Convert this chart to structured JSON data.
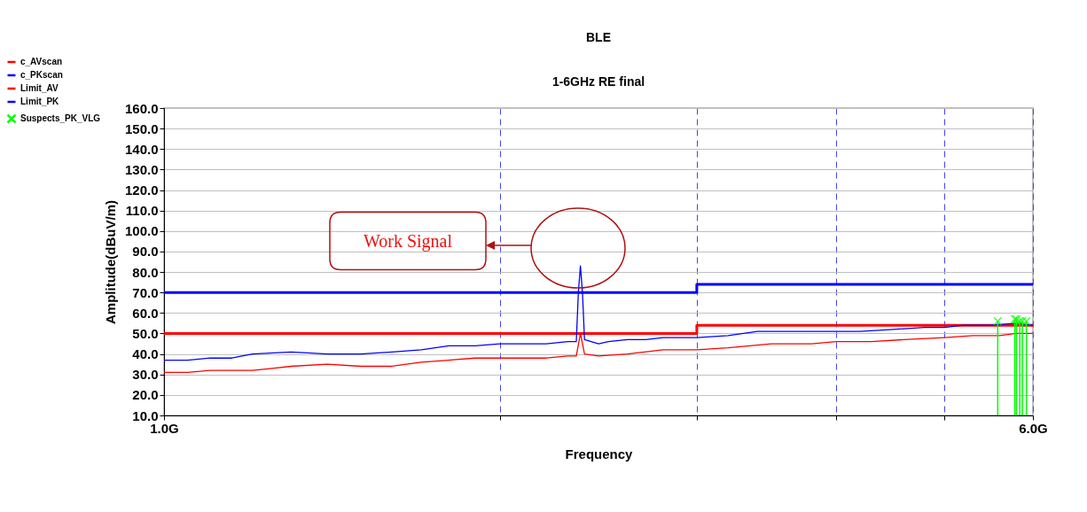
{
  "chart_data": {
    "type": "line",
    "title": "BLE",
    "subtitle": "1-6GHz RE final",
    "xlabel": "Frequency",
    "ylabel": "Amplitude(dBuV/m)",
    "log": "x",
    "xlim": [
      1,
      6
    ],
    "xticks": [
      {
        "value": 1,
        "label": "1.0G"
      },
      {
        "value": 2,
        "label": null
      },
      {
        "value": 3,
        "label": null
      },
      {
        "value": 4,
        "label": null
      },
      {
        "value": 5,
        "label": null
      },
      {
        "value": 6,
        "label": "6.0G"
      }
    ],
    "ylim": [
      10,
      160
    ],
    "yticks": [
      {
        "value": 10,
        "label": "10.0"
      },
      {
        "value": 20,
        "label": "20.0"
      },
      {
        "value": 30,
        "label": "30.0"
      },
      {
        "value": 40,
        "label": "40.0"
      },
      {
        "value": 50,
        "label": "50.0"
      },
      {
        "value": 60,
        "label": "60.0"
      },
      {
        "value": 70,
        "label": "70.0"
      },
      {
        "value": 80,
        "label": "80.0"
      },
      {
        "value": 90,
        "label": "90.0"
      },
      {
        "value": 100,
        "label": "100.0"
      },
      {
        "value": 110,
        "label": "110.0"
      },
      {
        "value": 120,
        "label": "120.0"
      },
      {
        "value": 130,
        "label": "130.0"
      },
      {
        "value": 140,
        "label": "140.0"
      },
      {
        "value": 150,
        "label": "150.0"
      },
      {
        "value": 160,
        "label": "160.0"
      }
    ],
    "grid": true,
    "legend": "top left",
    "annotations": [
      "Work Signal"
    ],
    "series": [
      {
        "name": "c_AVscan",
        "color": "#ff0000",
        "type": "line",
        "x": [
          1.0,
          1.05,
          1.1,
          1.15,
          1.2,
          1.25,
          1.3,
          1.4,
          1.5,
          1.6,
          1.7,
          1.8,
          1.9,
          2.0,
          2.1,
          2.2,
          2.3,
          2.34,
          2.36,
          2.38,
          2.45,
          2.6,
          2.8,
          3.0,
          3.2,
          3.5,
          3.8,
          4.0,
          4.3,
          4.6,
          5.0,
          5.3,
          5.6,
          5.8,
          6.0
        ],
        "values": [
          31,
          31,
          32,
          32,
          32,
          33,
          34,
          35,
          34,
          34,
          36,
          37,
          38,
          38,
          38,
          38,
          39,
          39,
          50,
          40,
          39,
          40,
          42,
          42,
          43,
          45,
          45,
          46,
          46,
          47,
          48,
          49,
          49,
          50,
          50
        ]
      },
      {
        "name": "c_PKscan",
        "color": "#0000ff",
        "type": "line",
        "x": [
          1.0,
          1.05,
          1.1,
          1.15,
          1.2,
          1.3,
          1.4,
          1.5,
          1.6,
          1.7,
          1.8,
          1.9,
          2.0,
          2.1,
          2.2,
          2.3,
          2.34,
          2.35,
          2.36,
          2.37,
          2.38,
          2.45,
          2.5,
          2.6,
          2.7,
          2.8,
          2.9,
          3.0,
          3.2,
          3.4,
          3.6,
          3.8,
          4.0,
          4.2,
          4.5,
          4.8,
          5.0,
          5.2,
          5.5,
          5.8,
          6.0
        ],
        "values": [
          37,
          37,
          38,
          38,
          40,
          41,
          40,
          40,
          41,
          42,
          44,
          44,
          45,
          45,
          45,
          46,
          46,
          70,
          83,
          70,
          47,
          45,
          46,
          47,
          47,
          48,
          48,
          48,
          49,
          51,
          51,
          51,
          51,
          51,
          52,
          53,
          53,
          54,
          54,
          55,
          54
        ]
      },
      {
        "name": "Limit_AV",
        "color": "#ff0000",
        "type": "step",
        "x": [
          1,
          3,
          6
        ],
        "values": [
          50,
          54,
          54
        ]
      },
      {
        "name": "Limit_PK",
        "color": "#0000ff",
        "type": "step",
        "x": [
          1,
          3,
          6
        ],
        "values": [
          70,
          74,
          74
        ]
      },
      {
        "name": "Suspects_PK_VLG",
        "color": "#00ff00",
        "type": "lollipop",
        "marker": "cross",
        "x": [
          5.58,
          5.78,
          5.8,
          5.84,
          5.87,
          5.92
        ],
        "values": [
          56,
          57,
          57,
          56,
          56,
          56
        ]
      }
    ]
  }
}
